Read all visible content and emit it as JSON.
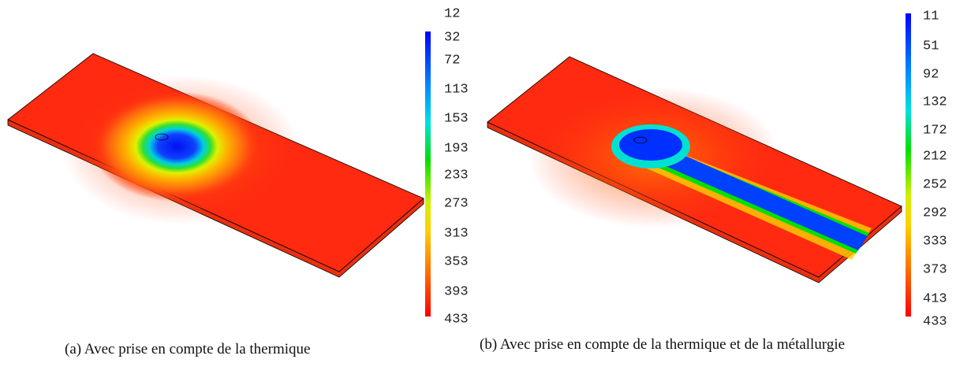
{
  "panels": [
    {
      "colorbar_labels": [
        12,
        32,
        72,
        113,
        153,
        193,
        233,
        273,
        313,
        353,
        393,
        433
      ],
      "caption": "(a) Avec prise en compte de la thermique"
    },
    {
      "colorbar_labels": [
        11,
        51,
        92,
        132,
        172,
        212,
        252,
        292,
        333,
        373,
        413,
        433
      ],
      "caption": "(b) Avec prise en compte de la thermique et de la métallurgie"
    }
  ]
}
